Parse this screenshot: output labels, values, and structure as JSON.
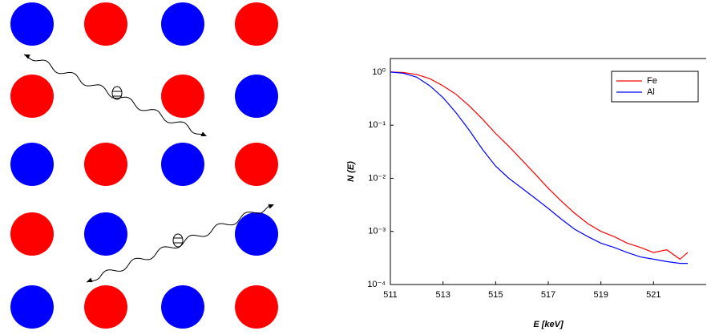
{
  "chart_data": {
    "type": "line",
    "xlabel": "E [keV]",
    "ylabel": "N (E)",
    "x": [
      511,
      511.5,
      512,
      512.5,
      513,
      513.5,
      514,
      514.5,
      515,
      515.5,
      516,
      516.5,
      517,
      517.5,
      518,
      518.5,
      519,
      519.5,
      520,
      520.5,
      521,
      521.5,
      522,
      522.3
    ],
    "series": [
      {
        "name": "Fe",
        "color": "#ff0000",
        "values": [
          1,
          0.98,
          0.9,
          0.75,
          0.55,
          0.38,
          0.23,
          0.13,
          0.07,
          0.04,
          0.022,
          0.012,
          0.0065,
          0.0037,
          0.0022,
          0.0014,
          0.001,
          0.0008,
          0.0006,
          0.0005,
          0.0004,
          0.00045,
          0.0003,
          0.0004
        ]
      },
      {
        "name": "Al",
        "color": "#0000ff",
        "values": [
          1,
          0.95,
          0.8,
          0.55,
          0.33,
          0.17,
          0.08,
          0.035,
          0.017,
          0.01,
          0.0065,
          0.0042,
          0.0027,
          0.0017,
          0.0011,
          0.0008,
          0.0006,
          0.0005,
          0.0004,
          0.00033,
          0.0003,
          0.00027,
          0.00025,
          0.00025
        ]
      }
    ],
    "xlim": [
      511,
      523
    ],
    "xticks": [
      511,
      513,
      515,
      517,
      519,
      521
    ],
    "ylim": [
      0.0001,
      1.8
    ],
    "yscale": "log",
    "yticks": [
      {
        "value": 1,
        "label": "10⁰"
      },
      {
        "value": 0.1,
        "label": "10⁻¹"
      },
      {
        "value": 0.01,
        "label": "10⁻²"
      },
      {
        "value": 0.001,
        "label": "10⁻³"
      },
      {
        "value": 0.0001,
        "label": "10⁻⁴"
      }
    ],
    "legend": "upper right"
  }
}
